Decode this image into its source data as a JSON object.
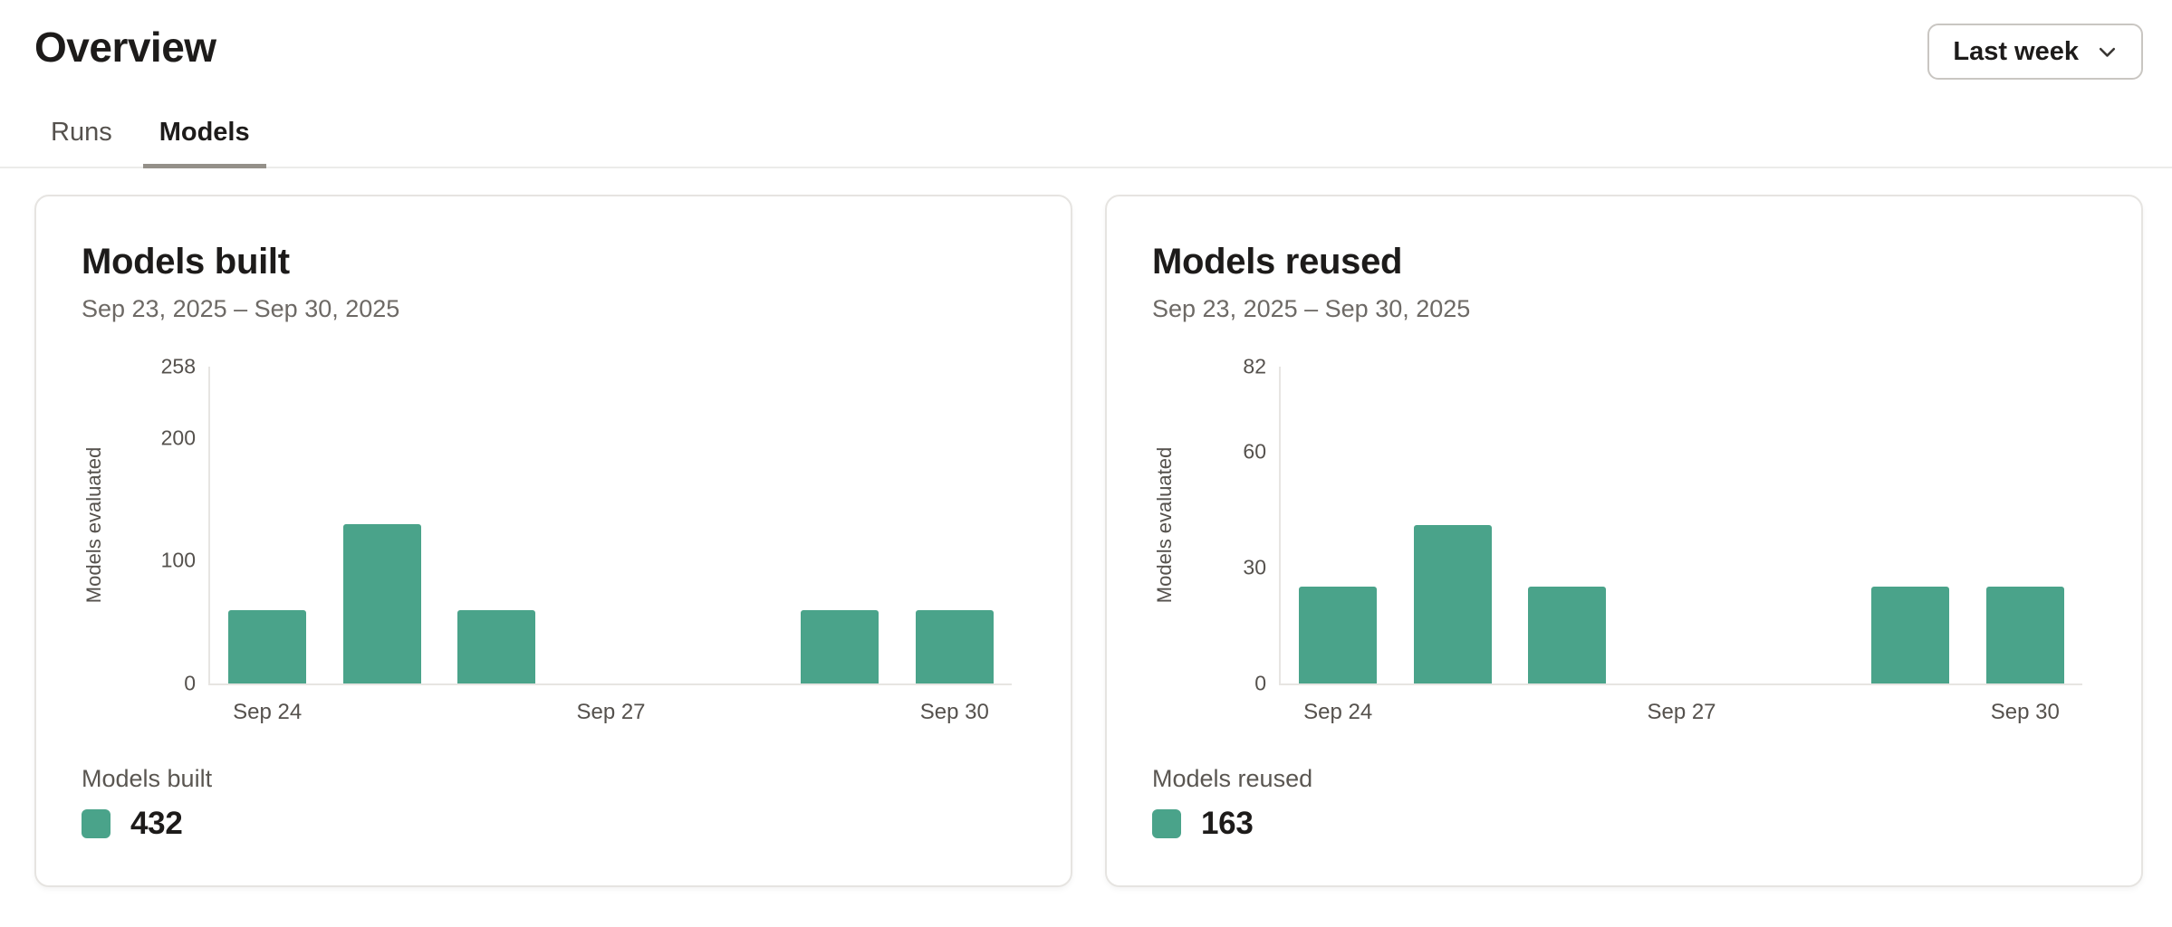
{
  "page": {
    "title": "Overview"
  },
  "time_range": {
    "selected": "Last week"
  },
  "tabs": [
    {
      "label": "Runs",
      "active": false
    },
    {
      "label": "Models",
      "active": true
    }
  ],
  "colors": {
    "bar": "#4aa38a",
    "active_tab_underline": "#949089",
    "muted_text": "#55514d"
  },
  "chart_data": [
    {
      "type": "bar",
      "title": "Models built",
      "subtitle": "Sep 23, 2025 – Sep 30, 2025",
      "ylabel": "Models evaluated",
      "xlabel": "",
      "categories": [
        "Sep 24",
        "Sep 25",
        "Sep 26",
        "Sep 27",
        "Sep 28",
        "Sep 29",
        "Sep 30"
      ],
      "values": [
        60,
        130,
        60,
        0,
        0,
        60,
        60
      ],
      "ylim": [
        0,
        258
      ],
      "yticks": [
        0,
        100,
        200,
        258
      ],
      "xticks_shown": [
        "Sep 24",
        "Sep 27",
        "Sep 30"
      ],
      "bar_color": "#4aa38a",
      "grid": false,
      "legend": {
        "label": "Models built",
        "total": "432",
        "position": "bottom-left"
      }
    },
    {
      "type": "bar",
      "title": "Models reused",
      "subtitle": "Sep 23, 2025 – Sep 30, 2025",
      "ylabel": "Models evaluated",
      "xlabel": "",
      "categories": [
        "Sep 24",
        "Sep 25",
        "Sep 26",
        "Sep 27",
        "Sep 28",
        "Sep 29",
        "Sep 30"
      ],
      "values": [
        25,
        41,
        25,
        0,
        0,
        25,
        25
      ],
      "ylim": [
        0,
        82
      ],
      "yticks": [
        0,
        30,
        60,
        82
      ],
      "xticks_shown": [
        "Sep 24",
        "Sep 27",
        "Sep 30"
      ],
      "bar_color": "#4aa38a",
      "grid": false,
      "legend": {
        "label": "Models reused",
        "total": "163",
        "position": "bottom-left"
      }
    }
  ]
}
